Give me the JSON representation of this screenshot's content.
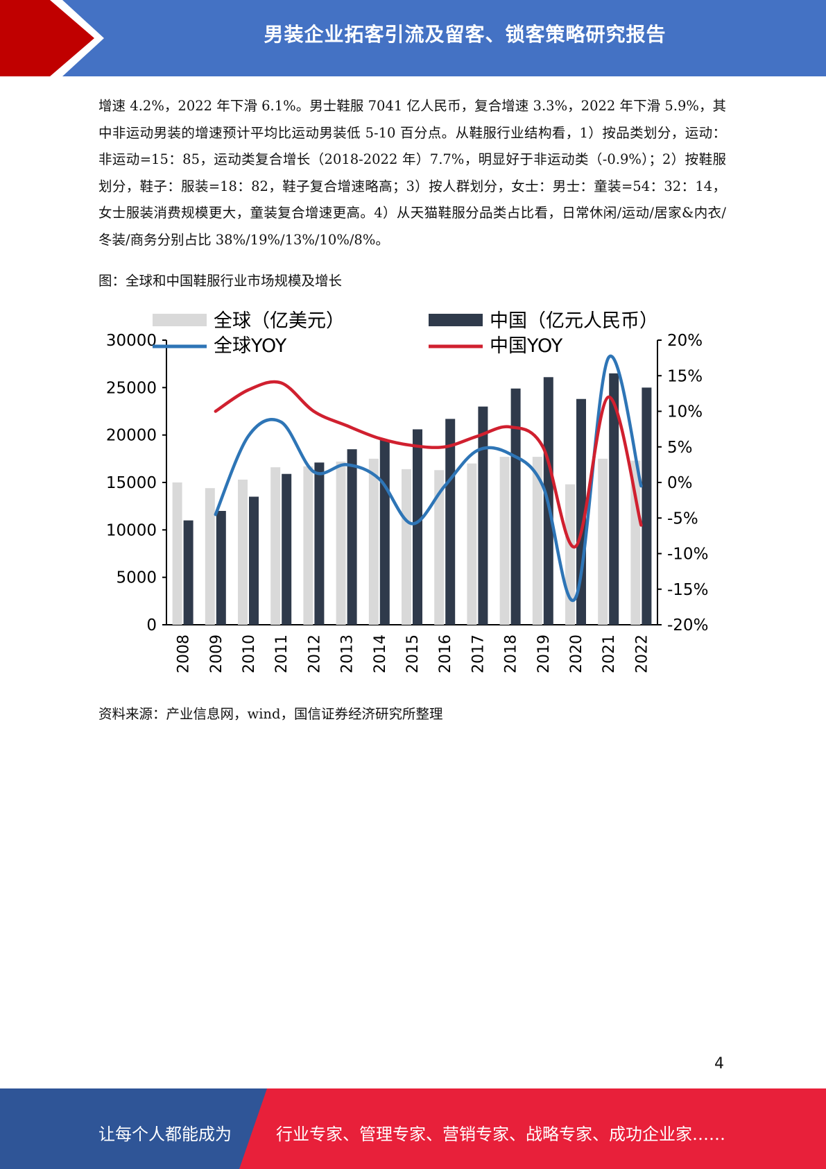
{
  "header": {
    "title": "男装企业拓客引流及留客、锁客策略研究报告"
  },
  "body_text": "增速 4.2%，2022 年下滑 6.1%。男士鞋服 7041 亿人民币，复合增速 3.3%，2022 年下滑 5.9%，其中非运动男装的增速预计平均比运动男装低 5-10 百分点。从鞋服行业结构看，1）按品类划分，运动：非运动=15：85，运动类复合增长（2018-2022 年）7.7%，明显好于非运动类（-0.9%）；2）按鞋服划分，鞋子：服装=18：82，鞋子复合增速略高；3）按人群划分，女士：男士：童装=54：32：14，女士服装消费规模更大，童装复合增速更高。4）从天猫鞋服分品类占比看，日常休闲/运动/居家&内衣/冬装/商务分别占比 38%/19%/13%/10%/8%。",
  "figure_title": "图：全球和中国鞋服行业市场规模及增长",
  "source": "资料来源：产业信息网，wind，国信证券经济研究所整理",
  "page_number": "4",
  "footer": {
    "left": "让每个人都能成为",
    "right": "行业专家、管理专家、营销专家、战略专家、成功企业家……"
  },
  "colors": {
    "header_blue": "#4472c4",
    "header_red": "#c00000",
    "footer_blue": "#2f5597",
    "footer_red": "#e8203a",
    "global_bar": "#d9d9d9",
    "china_bar": "#2f3a4b",
    "global_line": "#2e75b6",
    "china_line": "#d0202f"
  },
  "chart_data": {
    "type": "bar",
    "categories": [
      "2008",
      "2009",
      "2010",
      "2011",
      "2012",
      "2013",
      "2014",
      "2015",
      "2016",
      "2017",
      "2018",
      "2019",
      "2020",
      "2021",
      "2022"
    ],
    "series": [
      {
        "name": "全球（亿美元）",
        "kind": "bar",
        "axis": "left",
        "values": [
          15000,
          14400,
          15300,
          16600,
          16700,
          17200,
          17500,
          16400,
          16300,
          17000,
          17700,
          17700,
          14800,
          17500,
          17300
        ]
      },
      {
        "name": "中国（亿元人民币）",
        "kind": "bar",
        "axis": "left",
        "values": [
          11000,
          12000,
          13500,
          15900,
          17100,
          18500,
          19500,
          20600,
          21700,
          23000,
          24900,
          26100,
          23800,
          26500,
          25000
        ]
      },
      {
        "name": "全球YOY",
        "kind": "line",
        "axis": "right",
        "values": [
          null,
          -4.5,
          6.5,
          8.5,
          1.5,
          2.5,
          0.5,
          -5.8,
          -0.5,
          4.5,
          4.0,
          -0.5,
          -16.2,
          17.5,
          -0.5
        ]
      },
      {
        "name": "中国YOY",
        "kind": "line",
        "axis": "right",
        "values": [
          null,
          10.0,
          13.0,
          14.0,
          10.0,
          8.0,
          6.2,
          5.2,
          5.0,
          6.5,
          7.8,
          5.0,
          -9.0,
          12.0,
          -6.0
        ]
      }
    ],
    "left_ticks": [
      "0",
      "5000",
      "10000",
      "15000",
      "20000",
      "25000",
      "30000"
    ],
    "right_ticks": [
      "-20%",
      "-15%",
      "-10%",
      "-5%",
      "0%",
      "5%",
      "10%",
      "15%",
      "20%"
    ],
    "ylim": [
      0,
      30000
    ],
    "ylim_right": [
      -20,
      20
    ],
    "legend_position": "top"
  }
}
